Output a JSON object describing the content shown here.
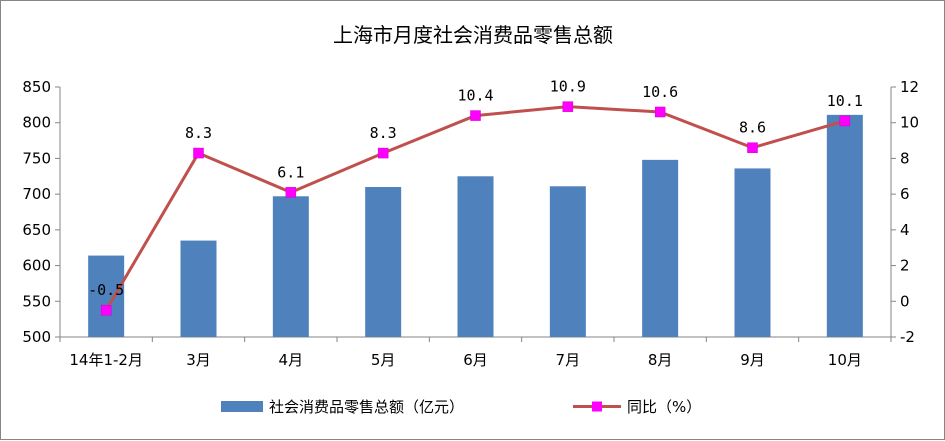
{
  "chart_data": {
    "type": "bar",
    "title": "上海市月度社会消费品零售总额",
    "categories": [
      "14年1-2月",
      "3月",
      "4月",
      "5月",
      "6月",
      "7月",
      "8月",
      "9月",
      "10月"
    ],
    "series": [
      {
        "name": "社会消费品零售总额（亿元）",
        "type": "bar",
        "axis": "left",
        "color": "#4F81BD",
        "values": [
          614,
          635,
          697,
          710,
          725,
          711,
          748,
          736,
          811
        ]
      },
      {
        "name": "同比（%）",
        "type": "line",
        "axis": "right",
        "color": "#C0504D",
        "marker_color": "#FF00FF",
        "values": [
          -0.5,
          8.3,
          6.1,
          8.3,
          10.4,
          10.9,
          10.6,
          8.6,
          10.1
        ],
        "data_labels": [
          "-0.5",
          "8.3",
          "6.1",
          "8.3",
          "10.4",
          "10.9",
          "10.6",
          "8.6",
          "10.1"
        ]
      }
    ],
    "y_left": {
      "ylim": [
        500,
        850
      ],
      "ticks": [
        500,
        550,
        600,
        650,
        700,
        750,
        800,
        850
      ],
      "tick_labels": [
        "500",
        "550",
        "600",
        "650",
        "700",
        "750",
        "800",
        "850"
      ]
    },
    "y_right": {
      "ylim": [
        -2,
        12
      ],
      "ticks": [
        -2,
        0,
        2,
        4,
        6,
        8,
        10,
        12
      ],
      "tick_labels": [
        "-2",
        "0",
        "2",
        "4",
        "6",
        "8",
        "10",
        "12"
      ]
    },
    "grid": false,
    "legend_position": "bottom"
  }
}
